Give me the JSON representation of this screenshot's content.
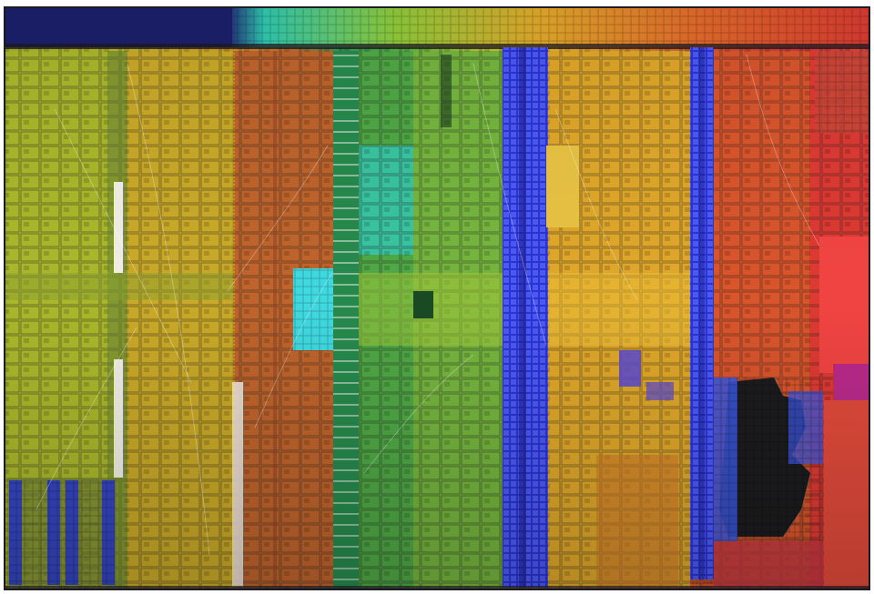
{
  "image": {
    "subject": "die-shot",
    "palette": {
      "background": "#ffffff",
      "dark_border": "#1d1a22",
      "yellow_green": "#a7b62b",
      "olive": "#7d8a2a",
      "gold": "#d2a525",
      "orange_brown": "#c0652b",
      "green": "#3fa248",
      "teal": "#2fc2b6",
      "cyan": "#45e2ee",
      "blue": "#2e35d8",
      "violet": "#4a3ad6",
      "amber": "#e39a25",
      "orange": "#e96e21",
      "red": "#e0402a",
      "crimson": "#d3273a",
      "magenta": "#c0307b",
      "black_region": "#1c1b1d",
      "pale_strip": "#f1ede6"
    }
  }
}
